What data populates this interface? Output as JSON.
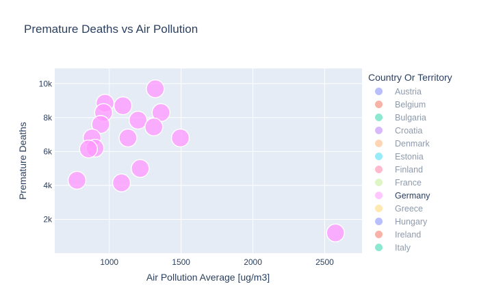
{
  "chart_data": {
    "type": "scatter",
    "title": "Premature Deaths vs Air Pollution",
    "xlabel": "Air Pollution Average [ug/m3]",
    "ylabel": "Premature Deaths",
    "xlim": [
      620,
      2760
    ],
    "ylim": [
      0,
      10900
    ],
    "xticks": [
      1000,
      1500,
      2000,
      2500
    ],
    "xtick_labels": [
      "1000",
      "1500",
      "2000",
      "2500"
    ],
    "yticks": [
      2000,
      4000,
      6000,
      8000,
      10000
    ],
    "ytick_labels": [
      "2k",
      "4k",
      "6k",
      "8k",
      "10k"
    ],
    "grid": true,
    "legend_title": "Country Or Territory",
    "legend_position": "right",
    "legend": [
      {
        "name": "Austria",
        "color": "#636efa",
        "active": false
      },
      {
        "name": "Belgium",
        "color": "#ef553b",
        "active": false
      },
      {
        "name": "Bulgaria",
        "color": "#00cc96",
        "active": false
      },
      {
        "name": "Croatia",
        "color": "#ab63fa",
        "active": false
      },
      {
        "name": "Denmark",
        "color": "#ffa15a",
        "active": false
      },
      {
        "name": "Estonia",
        "color": "#19d3f3",
        "active": false
      },
      {
        "name": "Finland",
        "color": "#ff6692",
        "active": false
      },
      {
        "name": "France",
        "color": "#b6e880",
        "active": false
      },
      {
        "name": "Germany",
        "color": "#ff97ff",
        "active": true
      },
      {
        "name": "Greece",
        "color": "#fecb52",
        "active": false
      },
      {
        "name": "Hungary",
        "color": "#636efa",
        "active": false
      },
      {
        "name": "Ireland",
        "color": "#ef553b",
        "active": false
      },
      {
        "name": "Italy",
        "color": "#00cc96",
        "active": false
      }
    ],
    "series": [
      {
        "name": "Germany",
        "color": "#ff97ff",
        "points": [
          {
            "x": 1320,
            "y": 9700
          },
          {
            "x": 970,
            "y": 8850
          },
          {
            "x": 1095,
            "y": 8700
          },
          {
            "x": 960,
            "y": 8300
          },
          {
            "x": 1360,
            "y": 8300
          },
          {
            "x": 1200,
            "y": 7850
          },
          {
            "x": 940,
            "y": 7600
          },
          {
            "x": 1310,
            "y": 7450
          },
          {
            "x": 880,
            "y": 6800
          },
          {
            "x": 1130,
            "y": 6800
          },
          {
            "x": 1495,
            "y": 6800
          },
          {
            "x": 900,
            "y": 6200
          },
          {
            "x": 855,
            "y": 6150
          },
          {
            "x": 1215,
            "y": 5000
          },
          {
            "x": 775,
            "y": 4300
          },
          {
            "x": 1085,
            "y": 4150
          },
          {
            "x": 2575,
            "y": 1200
          }
        ]
      }
    ]
  }
}
